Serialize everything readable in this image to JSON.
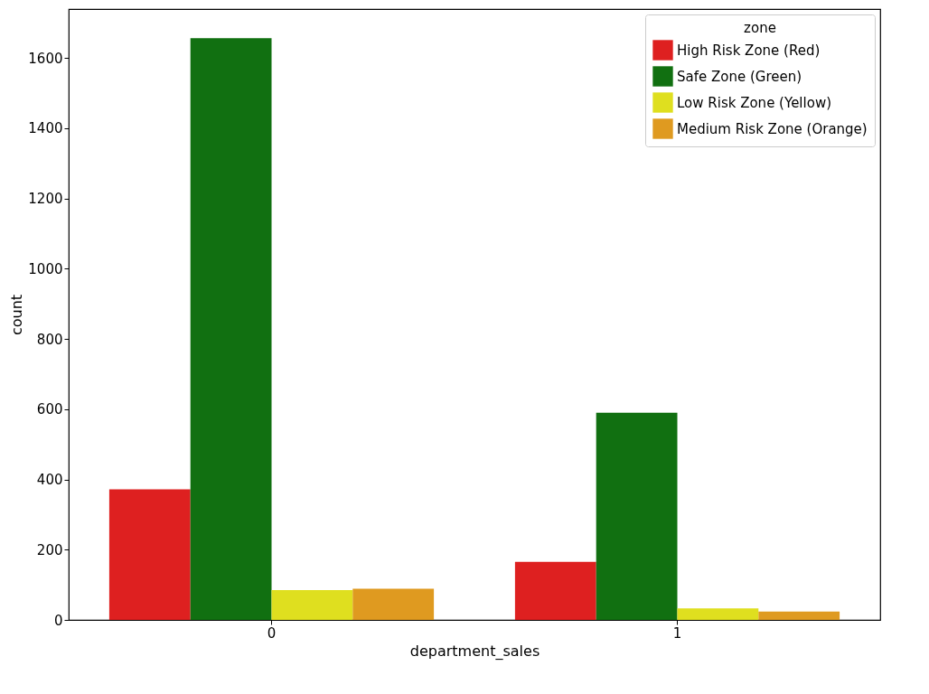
{
  "chart_data": {
    "type": "bar",
    "xlabel": "department_sales",
    "ylabel": "count",
    "legend_title": "zone",
    "categories": [
      "0",
      "1"
    ],
    "series": [
      {
        "name": "High Risk Zone (Red)",
        "color": "#de2020",
        "values": [
          372,
          165
        ]
      },
      {
        "name": "Safe Zone (Green)",
        "color": "#117011",
        "values": [
          1656,
          590
        ]
      },
      {
        "name": "Low Risk Zone (Yellow)",
        "color": "#dfdf1f",
        "values": [
          85,
          33
        ]
      },
      {
        "name": "Medium Risk Zone (Orange)",
        "color": "#df9a20",
        "values": [
          89,
          24
        ]
      }
    ],
    "ylim": [
      0,
      1739
    ],
    "yticks": [
      0,
      200,
      400,
      600,
      800,
      1000,
      1200,
      1400,
      1600
    ],
    "grid": false,
    "legend": "top right"
  }
}
